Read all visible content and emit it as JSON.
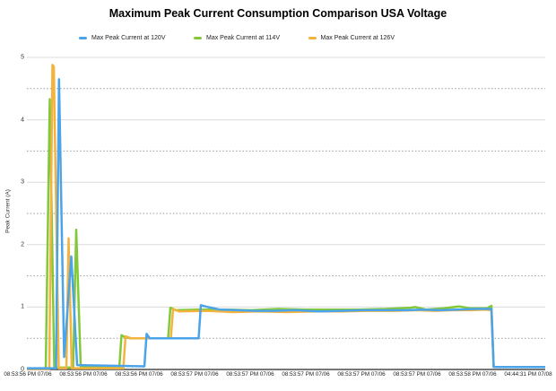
{
  "chart_data": {
    "type": "line",
    "title": "Maximum Peak Current Consumption Comparison USA Voltage",
    "xlabel": "",
    "ylabel": "Peak Current (A)",
    "ylim": [
      0,
      5
    ],
    "y_ticks": [
      0,
      1,
      2,
      3,
      4,
      5
    ],
    "grid": {
      "solid_gridlines_at": [
        1,
        2,
        3,
        4,
        5
      ],
      "dotted_gridlines_at": [
        0.5,
        1.5,
        2.5,
        3.5,
        4.5
      ],
      "solid_color": "#DCDCDC",
      "dotted_color": "#999999",
      "axis_line_color": "#4A4A4A"
    },
    "legend_position": "top",
    "x_tick_labels": [
      "08:53:56 PM 07/06",
      "08:53:56 PM 07/06",
      "08:53:56 PM 07/06",
      "08:53:57 PM 07/06",
      "08:53:57 PM 07/06",
      "08:53:57 PM 07/06",
      "08:53:57 PM 07/06",
      "08:53:57 PM 07/06",
      "08:53:58 PM 07/06",
      "04:44:31 PM 07/08"
    ],
    "x_axis_note": "x values below are percent of plot width (time axis)",
    "series": [
      {
        "name": "Max Peak Current at 120V",
        "color": "#4BA3EA",
        "points": [
          [
            0,
            0.02
          ],
          [
            5.62,
            0.02
          ],
          [
            6.19,
            4.65
          ],
          [
            7.18,
            0.2
          ],
          [
            8.56,
            1.81
          ],
          [
            9.69,
            0.07
          ],
          [
            22.66,
            0.05
          ],
          [
            23.1,
            0.57
          ],
          [
            23.7,
            0.5
          ],
          [
            33.13,
            0.5
          ],
          [
            33.56,
            1.03
          ],
          [
            34.95,
            1.0
          ],
          [
            37.2,
            0.96
          ],
          [
            40.66,
            0.95
          ],
          [
            44.12,
            0.94
          ],
          [
            47.58,
            0.94
          ],
          [
            51.9,
            0.95
          ],
          [
            56.23,
            0.93
          ],
          [
            60.55,
            0.94
          ],
          [
            64.88,
            0.95
          ],
          [
            69.2,
            0.95
          ],
          [
            73.53,
            0.95
          ],
          [
            76.12,
            0.96
          ],
          [
            79.58,
            0.95
          ],
          [
            83.04,
            0.96
          ],
          [
            86.51,
            0.97
          ],
          [
            89.62,
            0.97
          ],
          [
            90.05,
            0.04
          ],
          [
            100,
            0.04
          ]
        ]
      },
      {
        "name": "Max Peak Current at 114V",
        "color": "#82C93A",
        "points": [
          [
            0,
            0.01
          ],
          [
            3.63,
            0.01
          ],
          [
            4.41,
            4.33
          ],
          [
            5.28,
            0.03
          ],
          [
            8.91,
            0.03
          ],
          [
            9.52,
            2.24
          ],
          [
            10.38,
            0.05
          ],
          [
            17.82,
            0.02
          ],
          [
            18.25,
            0.55
          ],
          [
            18.86,
            0.52
          ],
          [
            19.9,
            0.5
          ],
          [
            27.25,
            0.5
          ],
          [
            27.68,
            0.99
          ],
          [
            28.72,
            0.95
          ],
          [
            32.87,
            0.96
          ],
          [
            38.06,
            0.96
          ],
          [
            43.25,
            0.95
          ],
          [
            48.44,
            0.97
          ],
          [
            53.63,
            0.96
          ],
          [
            58.82,
            0.96
          ],
          [
            64.01,
            0.96
          ],
          [
            69.2,
            0.97
          ],
          [
            74.05,
            0.99
          ],
          [
            74.91,
            1.0
          ],
          [
            76.99,
            0.96
          ],
          [
            80.45,
            0.98
          ],
          [
            83.39,
            1.01
          ],
          [
            85.64,
            0.98
          ],
          [
            88.75,
            0.98
          ],
          [
            89.62,
            1.02
          ],
          [
            90.05,
            0.04
          ],
          [
            100,
            0.04
          ]
        ]
      },
      {
        "name": "Max Peak Current at 126V",
        "color": "#F4B33F",
        "points": [
          [
            0,
            0.01
          ],
          [
            4.33,
            0.01
          ],
          [
            4.93,
            4.88
          ],
          [
            5.19,
            4.85
          ],
          [
            6.14,
            0.02
          ],
          [
            7.61,
            0.02
          ],
          [
            8.04,
            2.1
          ],
          [
            8.65,
            0.02
          ],
          [
            18.6,
            0.02
          ],
          [
            19.03,
            0.53
          ],
          [
            20.07,
            0.5
          ],
          [
            27.77,
            0.5
          ],
          [
            28.2,
            0.97
          ],
          [
            29.41,
            0.93
          ],
          [
            34.6,
            0.94
          ],
          [
            39.79,
            0.92
          ],
          [
            44.98,
            0.93
          ],
          [
            50.17,
            0.92
          ],
          [
            55.36,
            0.93
          ],
          [
            60.55,
            0.93
          ],
          [
            65.74,
            0.94
          ],
          [
            70.93,
            0.94
          ],
          [
            75.26,
            0.95
          ],
          [
            78.72,
            0.94
          ],
          [
            82.18,
            0.95
          ],
          [
            85.64,
            0.95
          ],
          [
            88.24,
            0.96
          ],
          [
            89.62,
            0.95
          ],
          [
            90.05,
            0.04
          ],
          [
            100,
            0.04
          ]
        ]
      }
    ]
  }
}
